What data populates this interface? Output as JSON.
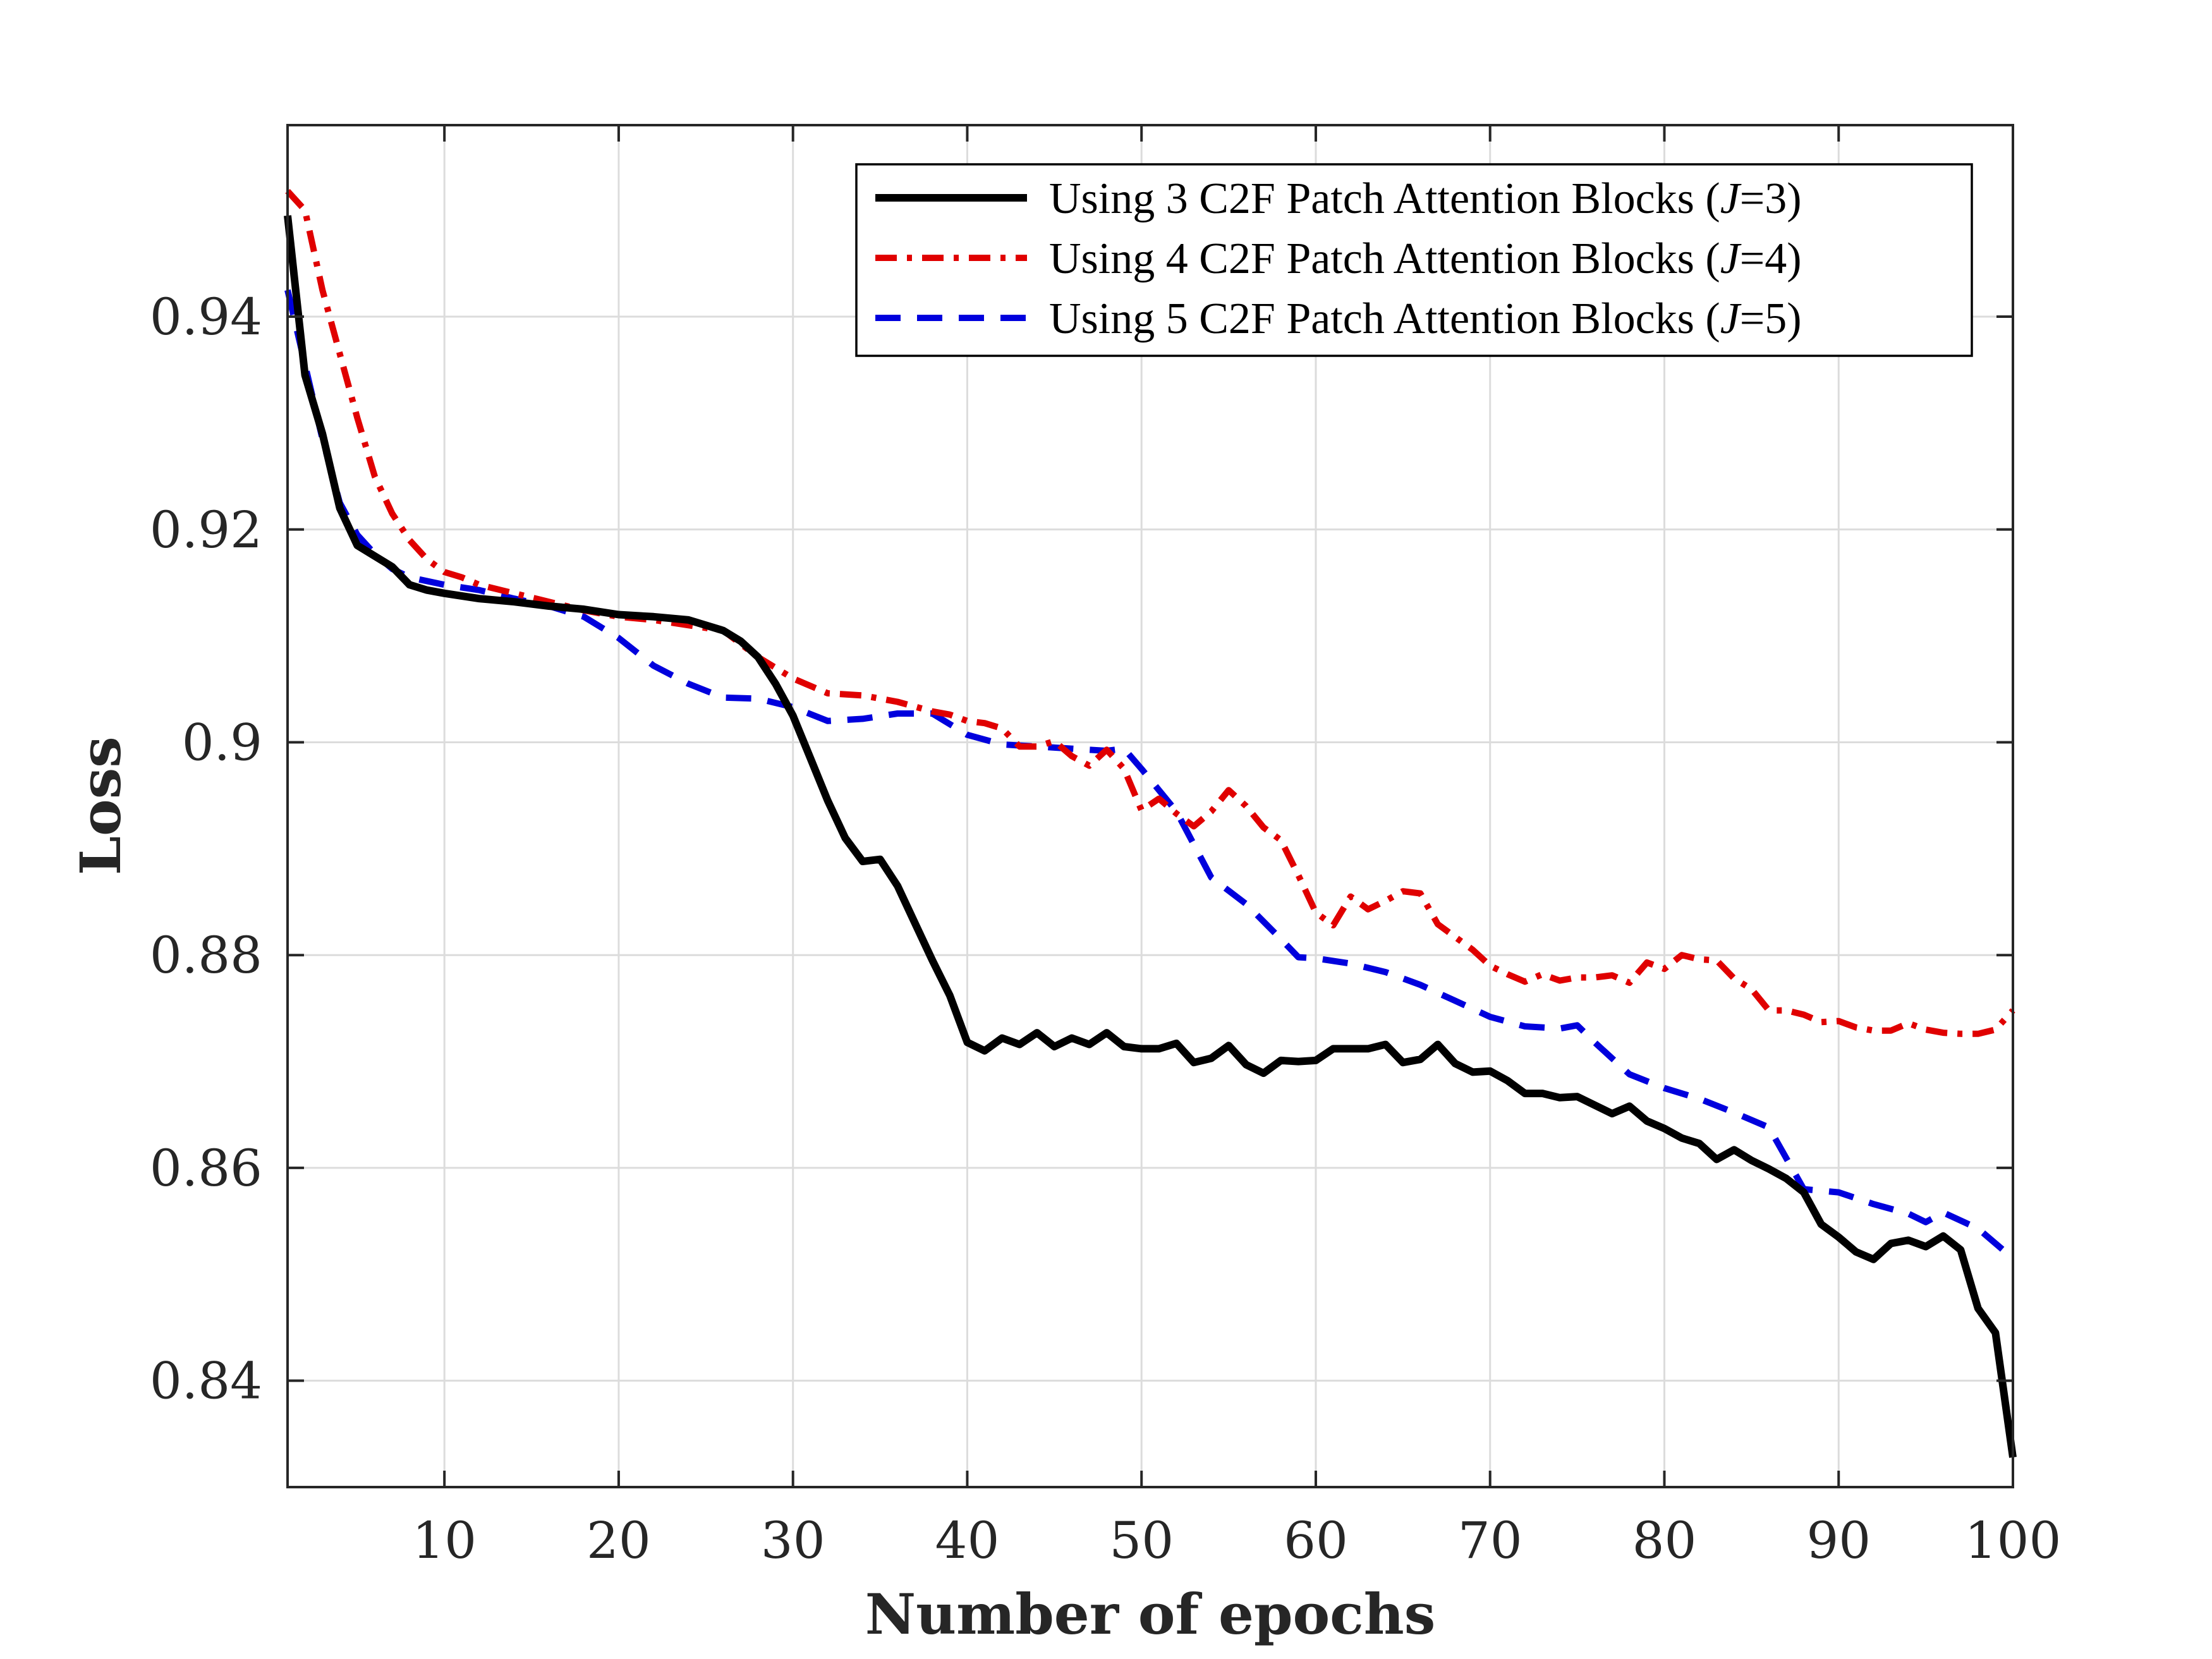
{
  "chart_data": {
    "type": "line",
    "title": "",
    "xlabel": "Number of epochs",
    "ylabel": "Loss",
    "xlim": [
      1,
      100
    ],
    "ylim": [
      0.83,
      0.958
    ],
    "grid": true,
    "legend_position": "top-right",
    "x_ticks": [
      10,
      20,
      30,
      40,
      50,
      60,
      70,
      80,
      90,
      100
    ],
    "x_tick_labels": [
      "10",
      "20",
      "30",
      "40",
      "50",
      "60",
      "70",
      "80",
      "90",
      "100"
    ],
    "y_ticks": [
      0.84,
      0.86,
      0.88,
      0.9,
      0.92,
      0.94
    ],
    "y_tick_labels": [
      "0.84",
      "0.86",
      "0.88",
      "0.9",
      "0.92",
      "0.94"
    ],
    "series": [
      {
        "name": "Using 3 C2F Patch Attention Blocks (J=3)",
        "legend_prefix": "Using 3 C2F Patch Attention Blocks (",
        "legend_var": "J",
        "legend_suffix": "=3)",
        "color": "#000000",
        "dash": "solid",
        "points": [
          [
            1,
            0.9495
          ],
          [
            2,
            0.9345
          ],
          [
            3,
            0.929
          ],
          [
            4,
            0.922
          ],
          [
            5,
            0.9185
          ],
          [
            6,
            0.9175
          ],
          [
            7,
            0.9165
          ],
          [
            8,
            0.9148
          ],
          [
            9,
            0.9143
          ],
          [
            10,
            0.914
          ],
          [
            12,
            0.9135
          ],
          [
            14,
            0.9132
          ],
          [
            16,
            0.9128
          ],
          [
            18,
            0.9125
          ],
          [
            20,
            0.912
          ],
          [
            22,
            0.9118
          ],
          [
            24,
            0.9115
          ],
          [
            26,
            0.9105
          ],
          [
            27,
            0.9095
          ],
          [
            28,
            0.908
          ],
          [
            29,
            0.9055
          ],
          [
            30,
            0.9025
          ],
          [
            31,
            0.8985
          ],
          [
            32,
            0.8945
          ],
          [
            33,
            0.891
          ],
          [
            34,
            0.8888
          ],
          [
            35,
            0.889
          ],
          [
            36,
            0.8865
          ],
          [
            37,
            0.883
          ],
          [
            38,
            0.8795
          ],
          [
            39,
            0.8762
          ],
          [
            40,
            0.8718
          ],
          [
            41,
            0.871
          ],
          [
            42,
            0.8722
          ],
          [
            43,
            0.8716
          ],
          [
            44,
            0.8727
          ],
          [
            45,
            0.8714
          ],
          [
            46,
            0.8722
          ],
          [
            47,
            0.8716
          ],
          [
            48,
            0.8727
          ],
          [
            49,
            0.8714
          ],
          [
            50,
            0.8712
          ],
          [
            51,
            0.8712
          ],
          [
            52,
            0.8717
          ],
          [
            53,
            0.8699
          ],
          [
            54,
            0.8703
          ],
          [
            55,
            0.8715
          ],
          [
            56,
            0.8697
          ],
          [
            57,
            0.8689
          ],
          [
            58,
            0.8701
          ],
          [
            59,
            0.87
          ],
          [
            60,
            0.8701
          ],
          [
            61,
            0.8712
          ],
          [
            62,
            0.8712
          ],
          [
            63,
            0.8712
          ],
          [
            64,
            0.8716
          ],
          [
            65,
            0.8699
          ],
          [
            66,
            0.8702
          ],
          [
            67,
            0.8716
          ],
          [
            68,
            0.8698
          ],
          [
            69,
            0.869
          ],
          [
            70,
            0.8691
          ],
          [
            71,
            0.8682
          ],
          [
            72,
            0.867
          ],
          [
            73,
            0.867
          ],
          [
            74,
            0.8666
          ],
          [
            75,
            0.8667
          ],
          [
            76,
            0.8659
          ],
          [
            77,
            0.8651
          ],
          [
            78,
            0.8658
          ],
          [
            79,
            0.8644
          ],
          [
            80,
            0.8637
          ],
          [
            81,
            0.8628
          ],
          [
            82,
            0.8623
          ],
          [
            83,
            0.8608
          ],
          [
            84,
            0.8617
          ],
          [
            85,
            0.8607
          ],
          [
            86,
            0.8599
          ],
          [
            87,
            0.859
          ],
          [
            88,
            0.8577
          ],
          [
            89,
            0.8547
          ],
          [
            90,
            0.8535
          ],
          [
            91,
            0.8521
          ],
          [
            92,
            0.8514
          ],
          [
            93,
            0.8529
          ],
          [
            94,
            0.8532
          ],
          [
            95,
            0.8526
          ],
          [
            96,
            0.8536
          ],
          [
            97,
            0.8523
          ],
          [
            98,
            0.8468
          ],
          [
            99,
            0.8445
          ],
          [
            100,
            0.8328
          ]
        ]
      },
      {
        "name": "Using 4 C2F Patch Attention Blocks (J=4)",
        "legend_prefix": "Using 4 C2F Patch Attention Blocks (",
        "legend_var": "J",
        "legend_suffix": "=4)",
        "color": "#e00000",
        "dash": "dashdot",
        "points": [
          [
            1,
            0.9518
          ],
          [
            2,
            0.95
          ],
          [
            3,
            0.9425
          ],
          [
            4,
            0.9365
          ],
          [
            5,
            0.9305
          ],
          [
            6,
            0.925
          ],
          [
            7,
            0.9215
          ],
          [
            8,
            0.919
          ],
          [
            9,
            0.9172
          ],
          [
            10,
            0.916
          ],
          [
            11,
            0.9155
          ],
          [
            12,
            0.9148
          ],
          [
            14,
            0.914
          ],
          [
            16,
            0.9132
          ],
          [
            18,
            0.9124
          ],
          [
            20,
            0.9118
          ],
          [
            22,
            0.9115
          ],
          [
            24,
            0.911
          ],
          [
            26,
            0.9105
          ],
          [
            28,
            0.908
          ],
          [
            30,
            0.906
          ],
          [
            32,
            0.9046
          ],
          [
            34,
            0.9044
          ],
          [
            36,
            0.9038
          ],
          [
            38,
            0.9029
          ],
          [
            39,
            0.9026
          ],
          [
            40,
            0.902
          ],
          [
            41,
            0.9018
          ],
          [
            42,
            0.9013
          ],
          [
            43,
            0.8996
          ],
          [
            44,
            0.8996
          ],
          [
            45,
            0.9001
          ],
          [
            46,
            0.8987
          ],
          [
            47,
            0.8978
          ],
          [
            48,
            0.8993
          ],
          [
            49,
            0.8975
          ],
          [
            50,
            0.8936
          ],
          [
            51,
            0.8947
          ],
          [
            52,
            0.8933
          ],
          [
            53,
            0.8921
          ],
          [
            54,
            0.8935
          ],
          [
            55,
            0.8955
          ],
          [
            56,
            0.894
          ],
          [
            57,
            0.892
          ],
          [
            58,
            0.8908
          ],
          [
            59,
            0.8875
          ],
          [
            60,
            0.884
          ],
          [
            61,
            0.8828
          ],
          [
            62,
            0.8855
          ],
          [
            63,
            0.8843
          ],
          [
            64,
            0.8851
          ],
          [
            65,
            0.886
          ],
          [
            66,
            0.8858
          ],
          [
            67,
            0.8829
          ],
          [
            68,
            0.8817
          ],
          [
            69,
            0.8805
          ],
          [
            70,
            0.879
          ],
          [
            71,
            0.8782
          ],
          [
            72,
            0.8775
          ],
          [
            73,
            0.8782
          ],
          [
            74,
            0.8776
          ],
          [
            75,
            0.8779
          ],
          [
            76,
            0.8779
          ],
          [
            77,
            0.8781
          ],
          [
            78,
            0.8774
          ],
          [
            79,
            0.8793
          ],
          [
            80,
            0.8787
          ],
          [
            81,
            0.88
          ],
          [
            82,
            0.8796
          ],
          [
            83,
            0.8795
          ],
          [
            84,
            0.8778
          ],
          [
            85,
            0.8768
          ],
          [
            86,
            0.8748
          ],
          [
            87,
            0.8748
          ],
          [
            88,
            0.8744
          ],
          [
            89,
            0.8737
          ],
          [
            90,
            0.8738
          ],
          [
            91,
            0.8732
          ],
          [
            92,
            0.8729
          ],
          [
            93,
            0.8729
          ],
          [
            94,
            0.8736
          ],
          [
            95,
            0.873
          ],
          [
            96,
            0.8727
          ],
          [
            97,
            0.8726
          ],
          [
            98,
            0.8726
          ],
          [
            99,
            0.873
          ],
          [
            100,
            0.8748
          ]
        ]
      },
      {
        "name": "Using 5 C2F Patch Attention Blocks (J=5)",
        "legend_prefix": "Using 5 C2F Patch Attention Blocks (",
        "legend_var": "J",
        "legend_suffix": "=5)",
        "color": "#0000dd",
        "dash": "dashed",
        "points": [
          [
            1,
            0.9425
          ],
          [
            2,
            0.9355
          ],
          [
            3,
            0.9285
          ],
          [
            4,
            0.9225
          ],
          [
            5,
            0.9195
          ],
          [
            6,
            0.9177
          ],
          [
            7,
            0.9163
          ],
          [
            8,
            0.9155
          ],
          [
            10,
            0.9148
          ],
          [
            12,
            0.9143
          ],
          [
            14,
            0.9135
          ],
          [
            16,
            0.9128
          ],
          [
            18,
            0.9118
          ],
          [
            20,
            0.9098
          ],
          [
            22,
            0.9072
          ],
          [
            24,
            0.9055
          ],
          [
            26,
            0.9042
          ],
          [
            28,
            0.9041
          ],
          [
            30,
            0.9033
          ],
          [
            32,
            0.902
          ],
          [
            34,
            0.9022
          ],
          [
            36,
            0.9027
          ],
          [
            38,
            0.9027
          ],
          [
            40,
            0.9007
          ],
          [
            42,
            0.8998
          ],
          [
            44,
            0.8996
          ],
          [
            46,
            0.8994
          ],
          [
            48,
            0.8992
          ],
          [
            49,
            0.8994
          ],
          [
            50,
            0.8975
          ],
          [
            52,
            0.8935
          ],
          [
            54,
            0.8873
          ],
          [
            56,
            0.8848
          ],
          [
            58,
            0.8815
          ],
          [
            59,
            0.8798
          ],
          [
            60,
            0.8797
          ],
          [
            62,
            0.8792
          ],
          [
            64,
            0.8784
          ],
          [
            66,
            0.8772
          ],
          [
            68,
            0.8757
          ],
          [
            70,
            0.8742
          ],
          [
            72,
            0.8733
          ],
          [
            74,
            0.8731
          ],
          [
            75,
            0.8734
          ],
          [
            76,
            0.8718
          ],
          [
            78,
            0.8688
          ],
          [
            80,
            0.8675
          ],
          [
            82,
            0.8665
          ],
          [
            84,
            0.8652
          ],
          [
            86,
            0.8638
          ],
          [
            88,
            0.858
          ],
          [
            90,
            0.8577
          ],
          [
            92,
            0.8566
          ],
          [
            94,
            0.8557
          ],
          [
            95,
            0.8549
          ],
          [
            96,
            0.8558
          ],
          [
            98,
            0.8543
          ],
          [
            100,
            0.8515
          ]
        ]
      }
    ]
  }
}
